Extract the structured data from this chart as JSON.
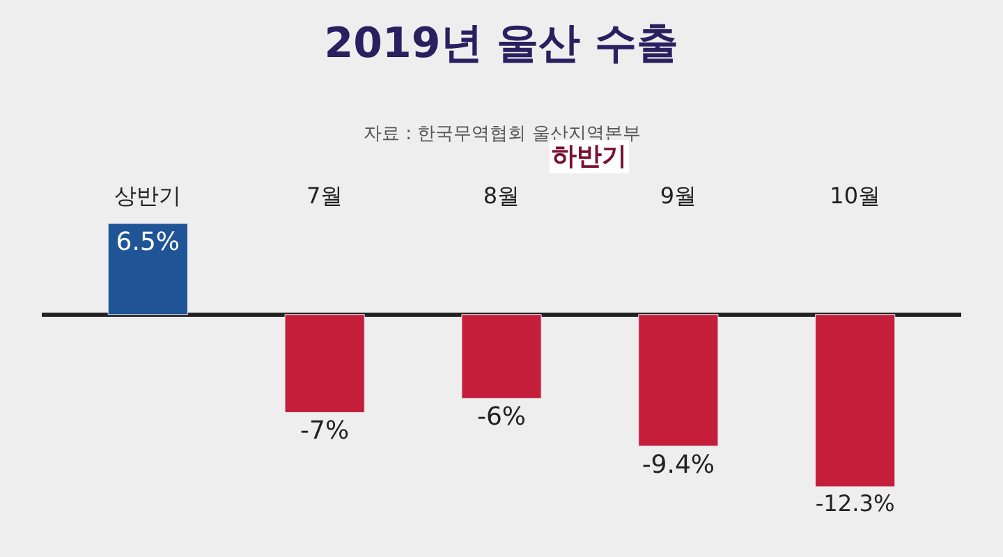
{
  "chart_data": {
    "type": "bar",
    "title": "2019년 울산 수출",
    "categories": [
      "상반기",
      "7월",
      "8월",
      "9월",
      "10월"
    ],
    "values": [
      6.5,
      -7,
      -6,
      -9.4,
      -12.3
    ],
    "colors": [
      "#1f5596",
      "#c41e3a",
      "#c41e3a",
      "#c41e3a",
      "#c41e3a"
    ],
    "value_labels": [
      "6.5%",
      "-7%",
      "-6%",
      "-9.4%",
      "-12.3%"
    ],
    "annotations": [
      "자료 : 한국무역협회 울산지역본부",
      "하반기"
    ],
    "tick_labels": "x",
    "grid": false,
    "legend": false
  }
}
